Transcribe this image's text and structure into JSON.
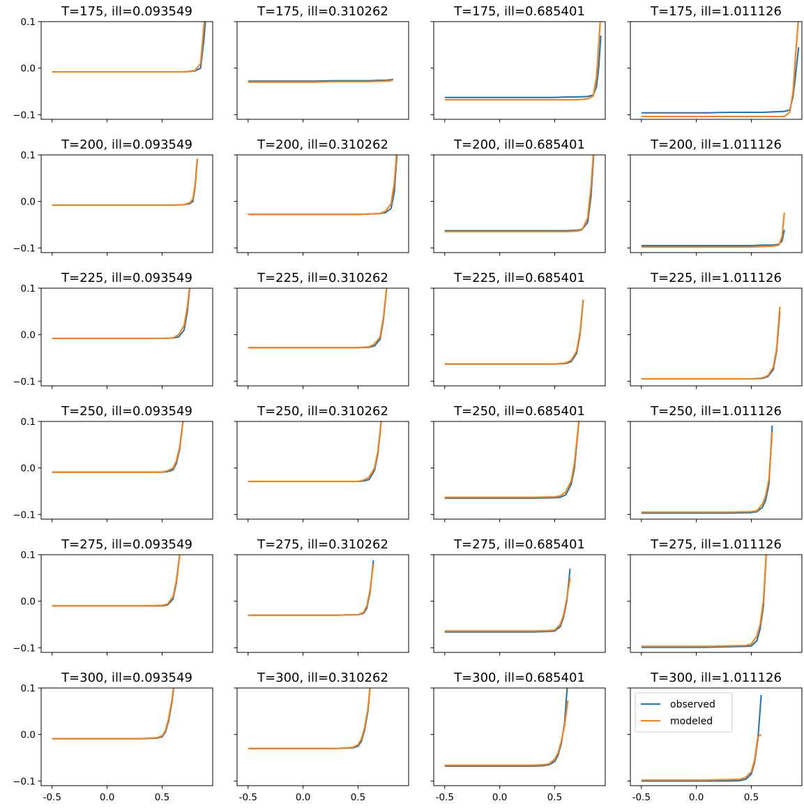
{
  "chart_data": {
    "type": "line",
    "layout": "6x4 grid of subplots, shared x and y axes",
    "xlim": [
      -0.6,
      0.96
    ],
    "ylim": [
      -0.11,
      0.1
    ],
    "xticks": [
      -0.5,
      0.0,
      0.5
    ],
    "xtick_labels": [
      "-0.5",
      "0.0",
      "0.5"
    ],
    "yticks": [
      -0.1,
      0.0,
      0.1
    ],
    "ytick_labels": [
      "−0.1",
      "0.0",
      "0.1"
    ],
    "grid": false,
    "legend": {
      "placement": "upper-left of last subplot",
      "entries": [
        "observed",
        "modeled"
      ]
    },
    "series_names": [
      "observed",
      "modeled"
    ],
    "colors": {
      "observed": "#1f77b4",
      "modeled": "#ff7f0e"
    },
    "panels": [
      {
        "title": "T=175, ill=0.093549",
        "x": [
          -0.5,
          -0.3,
          -0.1,
          0.1,
          0.3,
          0.5,
          0.6,
          0.7,
          0.75,
          0.8,
          0.85,
          0.88,
          0.9
        ],
        "observed": [
          -0.008,
          -0.008,
          -0.008,
          -0.008,
          -0.008,
          -0.008,
          -0.008,
          -0.008,
          -0.007,
          -0.006,
          0.0,
          0.06,
          0.12
        ],
        "modeled": [
          -0.008,
          -0.008,
          -0.008,
          -0.008,
          -0.008,
          -0.008,
          -0.008,
          -0.008,
          -0.007,
          -0.005,
          0.01,
          0.09,
          0.15
        ]
      },
      {
        "title": "T=175, ill=0.310262",
        "x": [
          -0.5,
          -0.3,
          -0.1,
          0.1,
          0.3,
          0.5,
          0.6,
          0.7,
          0.75,
          0.8,
          0.82
        ],
        "observed": [
          -0.028,
          -0.028,
          -0.028,
          -0.028,
          -0.027,
          -0.027,
          -0.027,
          -0.026,
          -0.026,
          -0.025,
          -0.024
        ],
        "modeled": [
          -0.03,
          -0.03,
          -0.03,
          -0.03,
          -0.029,
          -0.029,
          -0.029,
          -0.028,
          -0.028,
          -0.027,
          -0.025
        ]
      },
      {
        "title": "T=175, ill=0.685401",
        "x": [
          -0.5,
          -0.3,
          -0.1,
          0.1,
          0.3,
          0.5,
          0.6,
          0.7,
          0.8,
          0.85,
          0.88,
          0.9,
          0.92
        ],
        "observed": [
          -0.063,
          -0.063,
          -0.063,
          -0.063,
          -0.063,
          -0.063,
          -0.062,
          -0.062,
          -0.061,
          -0.058,
          -0.04,
          0.0,
          0.07
        ],
        "modeled": [
          -0.068,
          -0.068,
          -0.068,
          -0.068,
          -0.068,
          -0.068,
          -0.068,
          -0.068,
          -0.066,
          -0.06,
          -0.02,
          0.05,
          0.12
        ]
      },
      {
        "title": "T=175, ill=1.011126",
        "x": [
          -0.5,
          -0.3,
          -0.1,
          0.1,
          0.3,
          0.5,
          0.6,
          0.7,
          0.8,
          0.85,
          0.88,
          0.9,
          0.93
        ],
        "observed": [
          -0.096,
          -0.096,
          -0.096,
          -0.096,
          -0.095,
          -0.095,
          -0.095,
          -0.094,
          -0.093,
          -0.09,
          -0.06,
          -0.02,
          0.045
        ],
        "modeled": [
          -0.104,
          -0.104,
          -0.104,
          -0.104,
          -0.104,
          -0.104,
          -0.104,
          -0.104,
          -0.104,
          -0.095,
          -0.05,
          0.02,
          0.11
        ]
      },
      {
        "title": "T=200, ill=0.093549",
        "x": [
          -0.5,
          -0.3,
          -0.1,
          0.1,
          0.3,
          0.5,
          0.6,
          0.7,
          0.75,
          0.78,
          0.8,
          0.82
        ],
        "observed": [
          -0.008,
          -0.008,
          -0.008,
          -0.008,
          -0.008,
          -0.008,
          -0.008,
          -0.007,
          -0.005,
          0.0,
          0.03,
          0.09
        ],
        "modeled": [
          -0.008,
          -0.008,
          -0.008,
          -0.008,
          -0.008,
          -0.008,
          -0.008,
          -0.007,
          -0.003,
          0.005,
          0.035,
          0.092
        ]
      },
      {
        "title": "T=200, ill=0.310262",
        "x": [
          -0.5,
          -0.3,
          -0.1,
          0.1,
          0.3,
          0.5,
          0.6,
          0.7,
          0.75,
          0.8,
          0.83,
          0.86
        ],
        "observed": [
          -0.028,
          -0.028,
          -0.028,
          -0.028,
          -0.028,
          -0.028,
          -0.027,
          -0.026,
          -0.024,
          -0.015,
          0.02,
          0.12
        ],
        "modeled": [
          -0.028,
          -0.028,
          -0.028,
          -0.028,
          -0.028,
          -0.028,
          -0.027,
          -0.026,
          -0.021,
          -0.005,
          0.04,
          0.13
        ]
      },
      {
        "title": "T=200, ill=0.685401",
        "x": [
          -0.5,
          -0.3,
          -0.1,
          0.1,
          0.3,
          0.5,
          0.6,
          0.7,
          0.75,
          0.8,
          0.83,
          0.86
        ],
        "observed": [
          -0.063,
          -0.063,
          -0.063,
          -0.063,
          -0.063,
          -0.063,
          -0.063,
          -0.062,
          -0.06,
          -0.045,
          0.01,
          0.12
        ],
        "modeled": [
          -0.065,
          -0.065,
          -0.065,
          -0.065,
          -0.065,
          -0.065,
          -0.065,
          -0.064,
          -0.061,
          -0.035,
          0.03,
          0.13
        ]
      },
      {
        "title": "T=200, ill=1.011126",
        "x": [
          -0.5,
          -0.3,
          -0.1,
          0.1,
          0.3,
          0.5,
          0.6,
          0.7,
          0.75,
          0.78,
          0.8
        ],
        "observed": [
          -0.095,
          -0.095,
          -0.095,
          -0.095,
          -0.095,
          -0.095,
          -0.094,
          -0.094,
          -0.092,
          -0.085,
          -0.061
        ],
        "modeled": [
          -0.098,
          -0.098,
          -0.098,
          -0.098,
          -0.098,
          -0.098,
          -0.097,
          -0.096,
          -0.094,
          -0.075,
          -0.024
        ]
      },
      {
        "title": "T=225, ill=0.093549",
        "x": [
          -0.5,
          -0.3,
          -0.1,
          0.1,
          0.3,
          0.5,
          0.6,
          0.65,
          0.7,
          0.73,
          0.76
        ],
        "observed": [
          -0.008,
          -0.008,
          -0.008,
          -0.008,
          -0.008,
          -0.008,
          -0.007,
          -0.005,
          0.01,
          0.05,
          0.12
        ],
        "modeled": [
          -0.008,
          -0.008,
          -0.008,
          -0.008,
          -0.008,
          -0.008,
          -0.007,
          0.0,
          0.02,
          0.06,
          0.12
        ]
      },
      {
        "title": "T=225, ill=0.310262",
        "x": [
          -0.5,
          -0.3,
          -0.1,
          0.1,
          0.3,
          0.5,
          0.6,
          0.65,
          0.7,
          0.73,
          0.76
        ],
        "observed": [
          -0.028,
          -0.028,
          -0.028,
          -0.028,
          -0.028,
          -0.028,
          -0.027,
          -0.024,
          -0.01,
          0.03,
          0.1
        ],
        "modeled": [
          -0.028,
          -0.028,
          -0.028,
          -0.028,
          -0.028,
          -0.028,
          -0.026,
          -0.02,
          -0.005,
          0.035,
          0.1
        ]
      },
      {
        "title": "T=225, ill=0.685401",
        "x": [
          -0.5,
          -0.3,
          -0.1,
          0.1,
          0.3,
          0.5,
          0.6,
          0.65,
          0.7,
          0.73,
          0.76
        ],
        "observed": [
          -0.063,
          -0.063,
          -0.063,
          -0.063,
          -0.063,
          -0.063,
          -0.062,
          -0.058,
          -0.04,
          0.0,
          0.075
        ],
        "modeled": [
          -0.063,
          -0.063,
          -0.063,
          -0.063,
          -0.063,
          -0.063,
          -0.061,
          -0.055,
          -0.035,
          0.005,
          0.075
        ]
      },
      {
        "title": "T=225, ill=1.011126",
        "x": [
          -0.5,
          -0.3,
          -0.1,
          0.1,
          0.3,
          0.5,
          0.6,
          0.65,
          0.7,
          0.73,
          0.76
        ],
        "observed": [
          -0.095,
          -0.095,
          -0.095,
          -0.095,
          -0.095,
          -0.095,
          -0.094,
          -0.09,
          -0.075,
          -0.035,
          0.05
        ],
        "modeled": [
          -0.095,
          -0.095,
          -0.095,
          -0.095,
          -0.095,
          -0.095,
          -0.093,
          -0.088,
          -0.07,
          -0.03,
          0.06
        ]
      },
      {
        "title": "T=250, ill=0.093549",
        "x": [
          -0.5,
          -0.3,
          -0.1,
          0.1,
          0.3,
          0.5,
          0.55,
          0.6,
          0.63,
          0.66,
          0.7
        ],
        "observed": [
          -0.009,
          -0.009,
          -0.009,
          -0.009,
          -0.009,
          -0.009,
          -0.008,
          -0.004,
          0.01,
          0.04,
          0.12
        ],
        "modeled": [
          -0.009,
          -0.009,
          -0.009,
          -0.009,
          -0.009,
          -0.009,
          -0.006,
          0.0,
          0.015,
          0.045,
          0.12
        ]
      },
      {
        "title": "T=250, ill=0.310262",
        "x": [
          -0.5,
          -0.3,
          -0.1,
          0.1,
          0.3,
          0.5,
          0.55,
          0.6,
          0.65,
          0.68,
          0.72
        ],
        "observed": [
          -0.029,
          -0.029,
          -0.029,
          -0.029,
          -0.029,
          -0.029,
          -0.028,
          -0.025,
          -0.005,
          0.03,
          0.12
        ],
        "modeled": [
          -0.029,
          -0.029,
          -0.029,
          -0.029,
          -0.029,
          -0.029,
          -0.026,
          -0.02,
          0.0,
          0.035,
          0.12
        ]
      },
      {
        "title": "T=250, ill=0.685401",
        "x": [
          -0.5,
          -0.3,
          -0.1,
          0.1,
          0.3,
          0.5,
          0.55,
          0.6,
          0.65,
          0.68,
          0.72
        ],
        "observed": [
          -0.065,
          -0.065,
          -0.065,
          -0.065,
          -0.065,
          -0.064,
          -0.063,
          -0.058,
          -0.035,
          0.0,
          0.1
        ],
        "modeled": [
          -0.063,
          -0.063,
          -0.063,
          -0.063,
          -0.063,
          -0.062,
          -0.06,
          -0.052,
          -0.028,
          0.01,
          0.1
        ]
      },
      {
        "title": "T=250, ill=1.011126",
        "x": [
          -0.5,
          -0.3,
          -0.1,
          0.1,
          0.3,
          0.5,
          0.55,
          0.6,
          0.63,
          0.66,
          0.69
        ],
        "observed": [
          -0.097,
          -0.097,
          -0.097,
          -0.097,
          -0.097,
          -0.096,
          -0.094,
          -0.085,
          -0.07,
          -0.035,
          0.091
        ],
        "modeled": [
          -0.095,
          -0.095,
          -0.095,
          -0.095,
          -0.095,
          -0.094,
          -0.092,
          -0.078,
          -0.06,
          -0.025,
          0.078
        ]
      },
      {
        "title": "T=275, ill=0.093549",
        "x": [
          -0.5,
          -0.3,
          -0.1,
          0.1,
          0.3,
          0.5,
          0.55,
          0.6,
          0.63,
          0.66
        ],
        "observed": [
          -0.01,
          -0.01,
          -0.01,
          -0.01,
          -0.01,
          -0.01,
          -0.008,
          0.005,
          0.04,
          0.1
        ],
        "modeled": [
          -0.01,
          -0.01,
          -0.01,
          -0.01,
          -0.01,
          -0.009,
          -0.006,
          0.01,
          0.045,
          0.1
        ]
      },
      {
        "title": "T=275, ill=0.310262",
        "x": [
          -0.5,
          -0.3,
          -0.1,
          0.1,
          0.3,
          0.5,
          0.55,
          0.58,
          0.61,
          0.64
        ],
        "observed": [
          -0.03,
          -0.03,
          -0.03,
          -0.03,
          -0.03,
          -0.029,
          -0.026,
          -0.015,
          0.02,
          0.088
        ],
        "modeled": [
          -0.03,
          -0.03,
          -0.03,
          -0.03,
          -0.03,
          -0.029,
          -0.024,
          -0.01,
          0.025,
          0.08
        ]
      },
      {
        "title": "T=275, ill=0.685401",
        "x": [
          -0.5,
          -0.3,
          -0.1,
          0.1,
          0.3,
          0.45,
          0.5,
          0.55,
          0.58,
          0.61,
          0.64
        ],
        "observed": [
          -0.066,
          -0.066,
          -0.066,
          -0.066,
          -0.066,
          -0.065,
          -0.064,
          -0.055,
          -0.035,
          0.0,
          0.07
        ],
        "modeled": [
          -0.064,
          -0.064,
          -0.064,
          -0.064,
          -0.064,
          -0.063,
          -0.062,
          -0.05,
          -0.03,
          0.005,
          0.05
        ]
      },
      {
        "title": "T=275, ill=1.011126",
        "x": [
          -0.5,
          -0.3,
          -0.1,
          0.1,
          0.3,
          0.45,
          0.5,
          0.55,
          0.58,
          0.61,
          0.64
        ],
        "observed": [
          -0.099,
          -0.099,
          -0.099,
          -0.099,
          -0.098,
          -0.097,
          -0.096,
          -0.085,
          -0.06,
          -0.01,
          0.12
        ],
        "modeled": [
          -0.097,
          -0.097,
          -0.097,
          -0.097,
          -0.096,
          -0.095,
          -0.092,
          -0.075,
          -0.05,
          0.0,
          0.12
        ]
      },
      {
        "title": "T=300, ill=0.093549",
        "x": [
          -0.5,
          -0.3,
          -0.1,
          0.1,
          0.3,
          0.45,
          0.5,
          0.53,
          0.56,
          0.59,
          0.62
        ],
        "observed": [
          -0.009,
          -0.009,
          -0.009,
          -0.009,
          -0.009,
          -0.008,
          -0.005,
          0.005,
          0.03,
          0.07,
          0.13
        ],
        "modeled": [
          -0.009,
          -0.009,
          -0.009,
          -0.009,
          -0.009,
          -0.007,
          -0.003,
          0.008,
          0.035,
          0.075,
          0.13
        ]
      },
      {
        "title": "T=300, ill=0.310262",
        "x": [
          -0.5,
          -0.3,
          -0.1,
          0.1,
          0.3,
          0.45,
          0.5,
          0.53,
          0.56,
          0.59,
          0.62
        ],
        "observed": [
          -0.03,
          -0.03,
          -0.03,
          -0.03,
          -0.03,
          -0.029,
          -0.025,
          -0.015,
          0.01,
          0.05,
          0.13
        ],
        "modeled": [
          -0.03,
          -0.03,
          -0.03,
          -0.03,
          -0.03,
          -0.028,
          -0.022,
          -0.01,
          0.015,
          0.055,
          0.13
        ]
      },
      {
        "title": "T=300, ill=0.685401",
        "x": [
          -0.5,
          -0.3,
          -0.1,
          0.1,
          0.3,
          0.4,
          0.45,
          0.5,
          0.53,
          0.56,
          0.59,
          0.62
        ],
        "observed": [
          -0.068,
          -0.068,
          -0.068,
          -0.068,
          -0.068,
          -0.067,
          -0.065,
          -0.058,
          -0.045,
          -0.02,
          0.025,
          0.12
        ],
        "modeled": [
          -0.066,
          -0.066,
          -0.066,
          -0.066,
          -0.066,
          -0.065,
          -0.063,
          -0.053,
          -0.04,
          -0.015,
          0.02,
          0.073
        ]
      },
      {
        "title": "T=300, ill=1.011126",
        "x": [
          -0.5,
          -0.3,
          -0.1,
          0.1,
          0.3,
          0.4,
          0.45,
          0.5,
          0.53,
          0.56,
          0.59
        ],
        "observed": [
          -0.1,
          -0.1,
          -0.1,
          -0.1,
          -0.1,
          -0.099,
          -0.096,
          -0.085,
          -0.06,
          -0.01,
          0.085
        ],
        "modeled": [
          -0.098,
          -0.098,
          -0.098,
          -0.098,
          -0.097,
          -0.096,
          -0.092,
          -0.08,
          -0.055,
          -0.005,
          0.0
        ]
      }
    ]
  }
}
